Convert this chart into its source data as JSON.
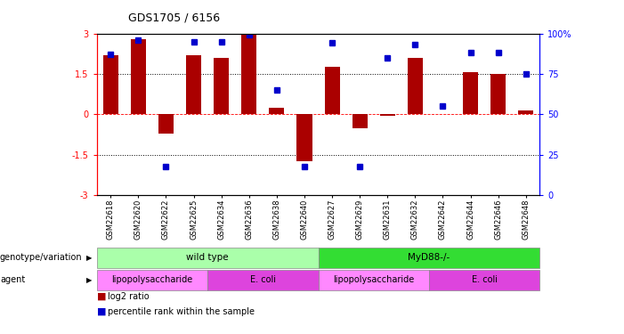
{
  "title": "GDS1705 / 6156",
  "samples": [
    "GSM22618",
    "GSM22620",
    "GSM22622",
    "GSM22625",
    "GSM22634",
    "GSM22636",
    "GSM22638",
    "GSM22640",
    "GSM22627",
    "GSM22629",
    "GSM22631",
    "GSM22632",
    "GSM22642",
    "GSM22644",
    "GSM22646",
    "GSM22648"
  ],
  "log2_ratio": [
    2.2,
    2.8,
    -0.7,
    2.2,
    2.1,
    2.95,
    0.25,
    -1.75,
    1.75,
    -0.5,
    -0.05,
    2.1,
    0.0,
    1.55,
    1.5,
    0.15
  ],
  "percentile": [
    87,
    96,
    18,
    95,
    95,
    99,
    65,
    18,
    94,
    18,
    85,
    93,
    55,
    88,
    88,
    75
  ],
  "genotype_groups": [
    {
      "label": "wild type",
      "start": 0,
      "end": 8,
      "color": "#AAFFAA"
    },
    {
      "label": "MyD88-/-",
      "start": 8,
      "end": 16,
      "color": "#33DD33"
    }
  ],
  "agent_groups": [
    {
      "label": "lipopolysaccharide",
      "start": 0,
      "end": 4,
      "color": "#FF88FF"
    },
    {
      "label": "E. coli",
      "start": 4,
      "end": 8,
      "color": "#DD44DD"
    },
    {
      "label": "lipopolysaccharide",
      "start": 8,
      "end": 12,
      "color": "#FF88FF"
    },
    {
      "label": "E. coli",
      "start": 12,
      "end": 16,
      "color": "#DD44DD"
    }
  ],
  "bar_color": "#AA0000",
  "dot_color": "#0000CC",
  "ylim": [
    -3,
    3
  ],
  "yticks_left": [
    -3,
    -1.5,
    0,
    1.5,
    3
  ],
  "yticks_right": [
    0,
    25,
    50,
    75,
    100
  ],
  "hlines_dotted": [
    -1.5,
    1.5
  ],
  "hline_red_dashed": 0,
  "background_color": "#ffffff"
}
